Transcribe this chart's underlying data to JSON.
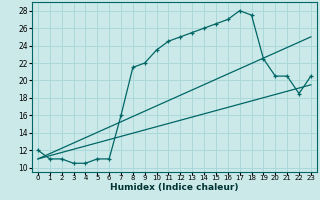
{
  "xlabel": "Humidex (Indice chaleur)",
  "ylabel": "",
  "bg_color": "#cce9e9",
  "line_color": "#006666",
  "grid_color": "#aad8d8",
  "xlim": [
    -0.5,
    23.5
  ],
  "ylim": [
    9.5,
    29
  ],
  "xticks": [
    0,
    1,
    2,
    3,
    4,
    5,
    6,
    7,
    8,
    9,
    10,
    11,
    12,
    13,
    14,
    15,
    16,
    17,
    18,
    19,
    20,
    21,
    22,
    23
  ],
  "yticks": [
    10,
    12,
    14,
    16,
    18,
    20,
    22,
    24,
    26,
    28
  ],
  "main_x": [
    0,
    1,
    2,
    3,
    4,
    5,
    6,
    7,
    8,
    9,
    10,
    11,
    12,
    13,
    14,
    15,
    16,
    17,
    18,
    19,
    20,
    21,
    22,
    23
  ],
  "main_y": [
    12.0,
    11.0,
    11.0,
    10.5,
    10.5,
    11.0,
    11.0,
    16.0,
    21.5,
    22.0,
    23.5,
    24.5,
    25.0,
    25.5,
    26.0,
    26.5,
    27.0,
    28.0,
    27.5,
    22.5,
    20.5,
    20.5,
    18.5,
    20.5
  ],
  "line2_x": [
    0,
    23
  ],
  "line2_y": [
    11.0,
    25.0
  ],
  "line3_x": [
    0,
    23
  ],
  "line3_y": [
    11.0,
    19.5
  ]
}
